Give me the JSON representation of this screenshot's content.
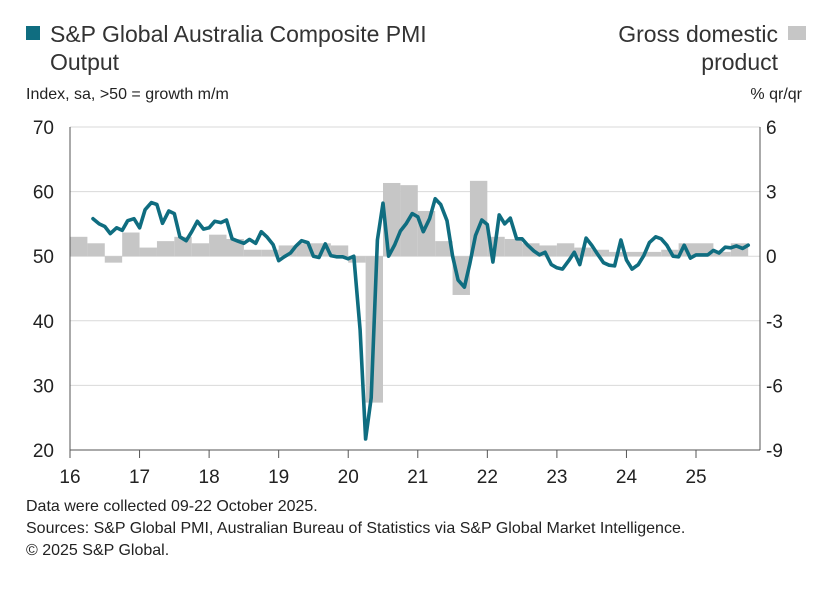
{
  "legend": {
    "pmi_label": "S&P Global Australia Composite PMI Output",
    "gdp_label": "Gross domestic product",
    "pmi_color": "#0f6d80",
    "gdp_color": "#c6c6c6"
  },
  "units": {
    "left": "Index, sa, >50 = growth m/m",
    "right": "% qr/qr"
  },
  "footer": {
    "line1": "Data were collected 09-22 October 2025.",
    "line2": "Sources: S&P Global PMI, Australian Bureau of Statistics via S&P Global Market Intelligence.",
    "line3": "© 2025 S&P Global."
  },
  "chart_data": {
    "type": "line",
    "x_range": [
      2016.0,
      2025.92
    ],
    "x_tick_labels": [
      "16",
      "17",
      "18",
      "19",
      "20",
      "21",
      "22",
      "23",
      "24",
      "25"
    ],
    "y_left": {
      "min": 20,
      "max": 70,
      "ticks": [
        "20",
        "30",
        "40",
        "50",
        "60",
        "70"
      ]
    },
    "y_right": {
      "min": -9,
      "max": 6,
      "ticks": [
        "-9",
        "-6",
        "-3",
        "0",
        "3",
        "6"
      ]
    },
    "grid": true,
    "series": [
      {
        "name": "S&P Global Australia Composite PMI Output",
        "type": "line",
        "axis": "left",
        "x": [
          2016.33,
          2016.42,
          2016.5,
          2016.58,
          2016.67,
          2016.75,
          2016.83,
          2016.92,
          2017.0,
          2017.08,
          2017.17,
          2017.25,
          2017.33,
          2017.42,
          2017.5,
          2017.58,
          2017.67,
          2017.75,
          2017.83,
          2017.92,
          2018.0,
          2018.08,
          2018.17,
          2018.25,
          2018.33,
          2018.42,
          2018.5,
          2018.58,
          2018.67,
          2018.75,
          2018.83,
          2018.92,
          2019.0,
          2019.08,
          2019.17,
          2019.25,
          2019.33,
          2019.42,
          2019.5,
          2019.58,
          2019.67,
          2019.75,
          2019.83,
          2019.92,
          2020.0,
          2020.08,
          2020.17,
          2020.25,
          2020.33,
          2020.42,
          2020.5,
          2020.58,
          2020.67,
          2020.75,
          2020.83,
          2020.92,
          2021.0,
          2021.08,
          2021.17,
          2021.25,
          2021.33,
          2021.42,
          2021.5,
          2021.58,
          2021.67,
          2021.75,
          2021.83,
          2021.92,
          2022.0,
          2022.08,
          2022.17,
          2022.25,
          2022.33,
          2022.42,
          2022.5,
          2022.58,
          2022.67,
          2022.75,
          2022.83,
          2022.92,
          2023.0,
          2023.08,
          2023.17,
          2023.25,
          2023.33,
          2023.42,
          2023.5,
          2023.58,
          2023.67,
          2023.75,
          2023.83,
          2023.92,
          2024.0,
          2024.08,
          2024.17,
          2024.25,
          2024.33,
          2024.42,
          2024.5,
          2024.58,
          2024.67,
          2024.75,
          2024.83,
          2024.92,
          2025.0,
          2025.08,
          2025.17,
          2025.25,
          2025.33,
          2025.42,
          2025.5,
          2025.58,
          2025.67,
          2025.75
        ],
        "values": [
          55.8,
          55.0,
          54.6,
          53.5,
          54.4,
          54.0,
          55.5,
          55.8,
          54.4,
          57.2,
          58.3,
          58.0,
          55.1,
          57.0,
          56.6,
          53.0,
          52.4,
          53.8,
          55.4,
          54.2,
          54.4,
          55.4,
          55.2,
          55.6,
          52.7,
          52.3,
          52.0,
          52.6,
          52.0,
          53.8,
          53.0,
          51.8,
          49.3,
          49.9,
          50.5,
          51.6,
          52.4,
          52.1,
          50.0,
          49.8,
          51.9,
          50.1,
          49.9,
          49.9,
          49.6,
          50.0,
          38.6,
          21.7,
          28.1,
          52.5,
          58.2,
          50.0,
          51.8,
          53.9,
          55.0,
          56.6,
          56.1,
          53.8,
          55.8,
          58.9,
          58.0,
          55.5,
          50.0,
          46.3,
          45.2,
          48.9,
          53.2,
          55.6,
          54.9,
          49.1,
          56.4,
          55.0,
          55.9,
          52.7,
          52.7,
          51.7,
          50.8,
          50.2,
          50.6,
          48.7,
          48.2,
          48.0,
          49.3,
          50.6,
          48.7,
          52.8,
          51.7,
          50.4,
          49.0,
          48.6,
          48.5,
          52.5,
          49.4,
          48.0,
          48.7,
          50.1,
          52.1,
          53.0,
          52.7,
          51.7,
          50.0,
          49.9,
          51.7,
          49.7,
          50.2,
          50.2,
          50.2,
          50.9,
          50.5,
          51.4,
          51.3,
          51.6,
          51.2,
          51.7
        ]
      },
      {
        "name": "Gross domestic product",
        "type": "bar",
        "axis": "right",
        "x_start": [
          2016.0,
          2016.25,
          2016.5,
          2016.75,
          2017.0,
          2017.25,
          2017.5,
          2017.75,
          2018.0,
          2018.25,
          2018.5,
          2018.75,
          2019.0,
          2019.25,
          2019.5,
          2019.75,
          2020.0,
          2020.25,
          2020.5,
          2020.75,
          2021.0,
          2021.25,
          2021.5,
          2021.75,
          2022.0,
          2022.25,
          2022.5,
          2022.75,
          2023.0,
          2023.25,
          2023.5,
          2023.75,
          2024.0,
          2024.25,
          2024.5,
          2024.75,
          2025.0,
          2025.25,
          2025.5
        ],
        "values": [
          0.9,
          0.6,
          -0.3,
          1.1,
          0.4,
          0.7,
          0.9,
          0.6,
          1.0,
          0.8,
          0.3,
          0.3,
          0.5,
          0.6,
          0.6,
          0.5,
          -0.3,
          -6.8,
          3.4,
          3.3,
          2.1,
          0.7,
          -1.8,
          3.5,
          0.9,
          0.8,
          0.6,
          0.5,
          0.6,
          0.4,
          0.3,
          0.2,
          0.2,
          0.2,
          0.3,
          0.6,
          0.6,
          0.2,
          0.6
        ]
      }
    ]
  }
}
